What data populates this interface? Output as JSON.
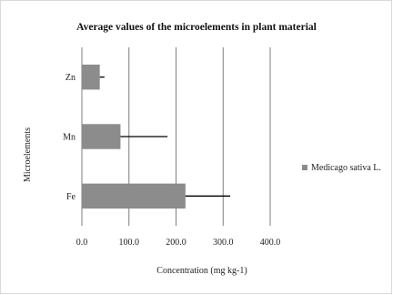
{
  "chart_data": {
    "type": "bar",
    "orientation": "horizontal",
    "title": "Average values of the microelements in plant material",
    "xlabel": "Concentration (mg kg-1)",
    "ylabel": "Microelements",
    "categories": [
      "Fe",
      "Mn",
      "Zn"
    ],
    "series": [
      {
        "name": "Medicago sativa L.",
        "values": [
          220,
          82,
          38
        ],
        "errors": [
          95,
          100,
          10
        ]
      }
    ],
    "xlim": [
      0,
      400
    ],
    "x_ticks": [
      "0.0",
      "100.0",
      "200.0",
      "300.0",
      "400.0"
    ],
    "grid": "vertical",
    "legend": "right",
    "colors": {
      "bar": "#8c8c8c",
      "grid": "#7f7f7f",
      "error": "#000000"
    }
  }
}
